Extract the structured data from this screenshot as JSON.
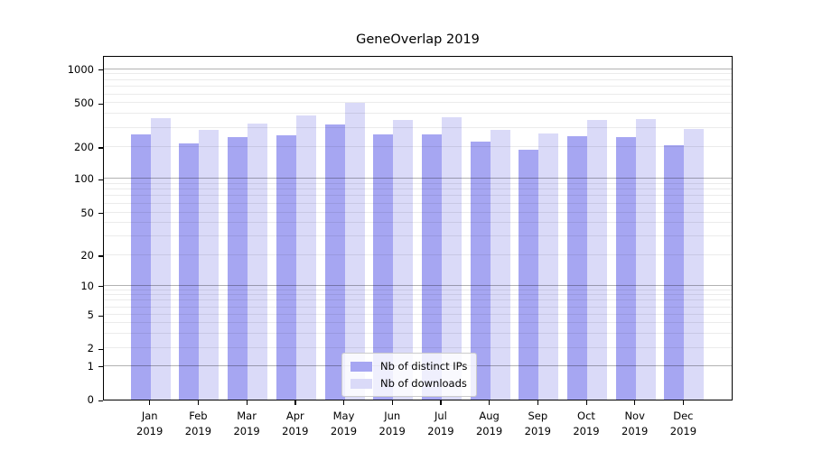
{
  "title": "GeneOverlap 2019",
  "chart_data": {
    "type": "bar",
    "title": "GeneOverlap 2019",
    "categories": [
      "Jan",
      "Feb",
      "Mar",
      "Apr",
      "May",
      "Jun",
      "Jul",
      "Aug",
      "Sep",
      "Oct",
      "Nov",
      "Dec"
    ],
    "year": "2019",
    "series": [
      {
        "name": "Nb of distinct IPs",
        "color": "#a6a6f2",
        "values": [
          260,
          217,
          248,
          256,
          323,
          259,
          260,
          224,
          187,
          250,
          245,
          206
        ]
      },
      {
        "name": "Nb of downloads",
        "color": "#dadaf8",
        "values": [
          367,
          288,
          325,
          387,
          500,
          355,
          372,
          289,
          265,
          353,
          362,
          294
        ]
      }
    ],
    "y_axis": {
      "scale": "symlog",
      "tick_labels": [
        "1000",
        "500",
        "200",
        "100",
        "50",
        "20",
        "10",
        "5",
        "2",
        "1",
        "0"
      ],
      "ylim": [
        0,
        1450
      ]
    },
    "x_axis": {
      "label": ""
    },
    "legend": {
      "position": "lower-center"
    },
    "grid": true
  }
}
